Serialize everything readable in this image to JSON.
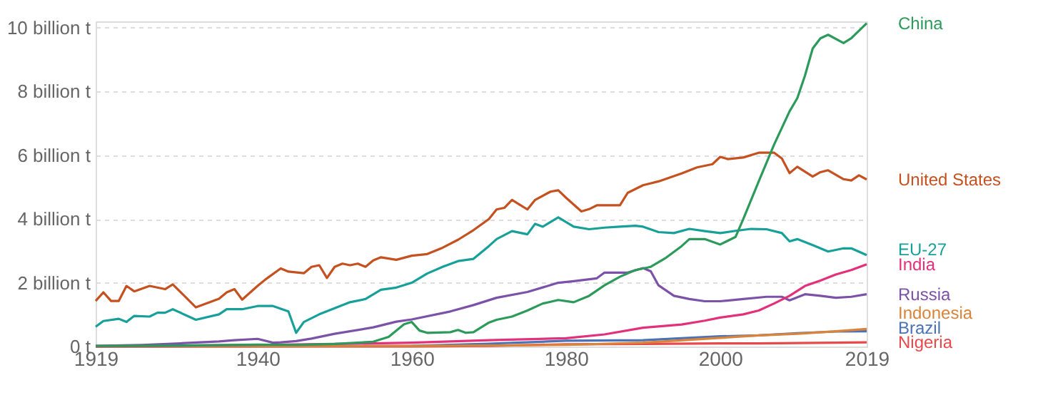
{
  "chart_data": {
    "type": "line",
    "xlim": [
      1919,
      2019
    ],
    "xticks": [
      1919,
      1940,
      1960,
      1980,
      2000,
      2019
    ],
    "ylim": [
      0,
      10.2
    ],
    "yticks": [
      {
        "value": 0,
        "label": "0 t"
      },
      {
        "value": 2,
        "label": "2 billion t"
      },
      {
        "value": 4,
        "label": "4 billion t"
      },
      {
        "value": 6,
        "label": "6 billion t"
      },
      {
        "value": 8,
        "label": "8 billion t"
      },
      {
        "value": 10,
        "label": "10 billion t"
      }
    ],
    "grid": "y",
    "legend": "right",
    "marker": "none",
    "line_style": "solid",
    "series": [
      {
        "name": "China",
        "color": "#2b9a5a",
        "x": [
          1919,
          1930,
          1940,
          1945,
          1950,
          1955,
          1957,
          1959,
          1960,
          1961,
          1962,
          1965,
          1966,
          1967,
          1968,
          1970,
          1971,
          1973,
          1975,
          1977,
          1979,
          1981,
          1983,
          1985,
          1987,
          1989,
          1991,
          1993,
          1995,
          1996,
          1998,
          2000,
          2002,
          2003,
          2005,
          2007,
          2009,
          2010,
          2011,
          2012,
          2013,
          2014,
          2016,
          2017,
          2019
        ],
        "values": [
          0.02,
          0.03,
          0.06,
          0.05,
          0.08,
          0.15,
          0.3,
          0.7,
          0.77,
          0.5,
          0.43,
          0.45,
          0.52,
          0.43,
          0.45,
          0.75,
          0.84,
          0.94,
          1.13,
          1.35,
          1.46,
          1.39,
          1.59,
          1.92,
          2.19,
          2.4,
          2.5,
          2.79,
          3.15,
          3.37,
          3.37,
          3.2,
          3.44,
          4.0,
          5.18,
          6.34,
          7.38,
          7.79,
          8.5,
          9.35,
          9.67,
          9.78,
          9.52,
          9.67,
          10.14
        ]
      },
      {
        "name": "United States",
        "color": "#c4511f",
        "x": [
          1919,
          1920,
          1921,
          1922,
          1923,
          1924,
          1926,
          1928,
          1929,
          1932,
          1935,
          1936,
          1937,
          1938,
          1940,
          1941,
          1943,
          1944,
          1946,
          1947,
          1948,
          1949,
          1950,
          1951,
          1952,
          1953,
          1954,
          1955,
          1956,
          1958,
          1960,
          1962,
          1964,
          1966,
          1968,
          1970,
          1971,
          1972,
          1973,
          1974,
          1975,
          1976,
          1978,
          1979,
          1980,
          1982,
          1983,
          1984,
          1987,
          1988,
          1990,
          1992,
          1995,
          1997,
          1999,
          2000,
          2001,
          2003,
          2005,
          2007,
          2008,
          2009,
          2010,
          2012,
          2013,
          2014,
          2016,
          2017,
          2018,
          2019
        ],
        "values": [
          1.43,
          1.7,
          1.43,
          1.43,
          1.9,
          1.73,
          1.9,
          1.8,
          1.95,
          1.23,
          1.5,
          1.7,
          1.8,
          1.47,
          1.9,
          2.1,
          2.45,
          2.35,
          2.3,
          2.5,
          2.55,
          2.15,
          2.5,
          2.6,
          2.55,
          2.6,
          2.5,
          2.7,
          2.8,
          2.72,
          2.85,
          2.9,
          3.1,
          3.35,
          3.65,
          4.0,
          4.3,
          4.35,
          4.6,
          4.45,
          4.3,
          4.6,
          4.86,
          4.9,
          4.67,
          4.24,
          4.31,
          4.43,
          4.43,
          4.82,
          5.06,
          5.18,
          5.43,
          5.62,
          5.72,
          5.95,
          5.88,
          5.93,
          6.08,
          6.08,
          5.9,
          5.44,
          5.64,
          5.33,
          5.47,
          5.53,
          5.25,
          5.21,
          5.37,
          5.24
        ]
      },
      {
        "name": "EU-27",
        "color": "#17a09a",
        "x": [
          1919,
          1920,
          1922,
          1923,
          1924,
          1926,
          1927,
          1928,
          1929,
          1932,
          1935,
          1936,
          1938,
          1940,
          1942,
          1944,
          1945,
          1946,
          1948,
          1950,
          1952,
          1954,
          1956,
          1958,
          1960,
          1962,
          1964,
          1966,
          1968,
          1970,
          1971,
          1973,
          1975,
          1976,
          1977,
          1979,
          1981,
          1983,
          1985,
          1987,
          1989,
          1990,
          1992,
          1994,
          1996,
          1998,
          2000,
          2002,
          2004,
          2006,
          2008,
          2009,
          2010,
          2012,
          2014,
          2016,
          2017,
          2019
        ],
        "values": [
          0.62,
          0.8,
          0.87,
          0.77,
          0.96,
          0.94,
          1.06,
          1.06,
          1.17,
          0.84,
          1.01,
          1.17,
          1.17,
          1.27,
          1.27,
          1.1,
          0.43,
          0.77,
          1.01,
          1.2,
          1.39,
          1.49,
          1.78,
          1.85,
          2.0,
          2.29,
          2.5,
          2.68,
          2.75,
          3.15,
          3.37,
          3.62,
          3.52,
          3.85,
          3.76,
          4.05,
          3.76,
          3.68,
          3.73,
          3.76,
          3.79,
          3.76,
          3.59,
          3.56,
          3.69,
          3.62,
          3.56,
          3.63,
          3.69,
          3.68,
          3.56,
          3.3,
          3.37,
          3.18,
          2.98,
          3.08,
          3.08,
          2.87
        ]
      },
      {
        "name": "India",
        "color": "#e3307a",
        "x": [
          1919,
          1930,
          1940,
          1950,
          1960,
          1970,
          1980,
          1985,
          1990,
          1995,
          1998,
          2000,
          2003,
          2005,
          2007,
          2009,
          2011,
          2013,
          2015,
          2017,
          2019
        ],
        "values": [
          0.01,
          0.03,
          0.05,
          0.08,
          0.12,
          0.2,
          0.26,
          0.38,
          0.59,
          0.69,
          0.81,
          0.91,
          1.01,
          1.13,
          1.35,
          1.59,
          1.9,
          2.07,
          2.26,
          2.4,
          2.58
        ]
      },
      {
        "name": "Russia",
        "color": "#7b52a8",
        "x": [
          1919,
          1925,
          1930,
          1935,
          1937,
          1940,
          1942,
          1943,
          1945,
          1947,
          1950,
          1955,
          1958,
          1960,
          1965,
          1968,
          1971,
          1975,
          1979,
          1981,
          1984,
          1985,
          1988,
          1990,
          1991,
          1992,
          1994,
          1996,
          1998,
          2000,
          2003,
          2006,
          2008,
          2009,
          2011,
          2013,
          2015,
          2017,
          2019
        ],
        "values": [
          0.02,
          0.05,
          0.1,
          0.16,
          0.2,
          0.24,
          0.12,
          0.13,
          0.17,
          0.25,
          0.4,
          0.6,
          0.78,
          0.85,
          1.1,
          1.3,
          1.53,
          1.71,
          2.0,
          2.05,
          2.14,
          2.32,
          2.32,
          2.46,
          2.36,
          1.92,
          1.59,
          1.49,
          1.42,
          1.42,
          1.49,
          1.56,
          1.56,
          1.45,
          1.64,
          1.59,
          1.53,
          1.56,
          1.64
        ]
      },
      {
        "name": "Indonesia",
        "color": "#d9843a",
        "x": [
          1919,
          1940,
          1960,
          1970,
          1980,
          1990,
          2000,
          2005,
          2010,
          2015,
          2019
        ],
        "values": [
          0.0,
          0.01,
          0.02,
          0.03,
          0.05,
          0.12,
          0.27,
          0.35,
          0.4,
          0.48,
          0.55
        ]
      },
      {
        "name": "Brazil",
        "color": "#4a72b5",
        "x": [
          1919,
          1940,
          1960,
          1970,
          1980,
          1990,
          2000,
          2005,
          2010,
          2015,
          2019
        ],
        "values": [
          0.0,
          0.01,
          0.02,
          0.09,
          0.18,
          0.2,
          0.32,
          0.35,
          0.42,
          0.47,
          0.48
        ]
      },
      {
        "name": "Nigeria",
        "color": "#e8494b",
        "x": [
          1919,
          1940,
          1960,
          1970,
          1980,
          1990,
          2000,
          2005,
          2010,
          2015,
          2019
        ],
        "values": [
          0.0,
          0.0,
          0.0,
          0.02,
          0.07,
          0.08,
          0.1,
          0.1,
          0.11,
          0.12,
          0.13
        ]
      }
    ]
  }
}
